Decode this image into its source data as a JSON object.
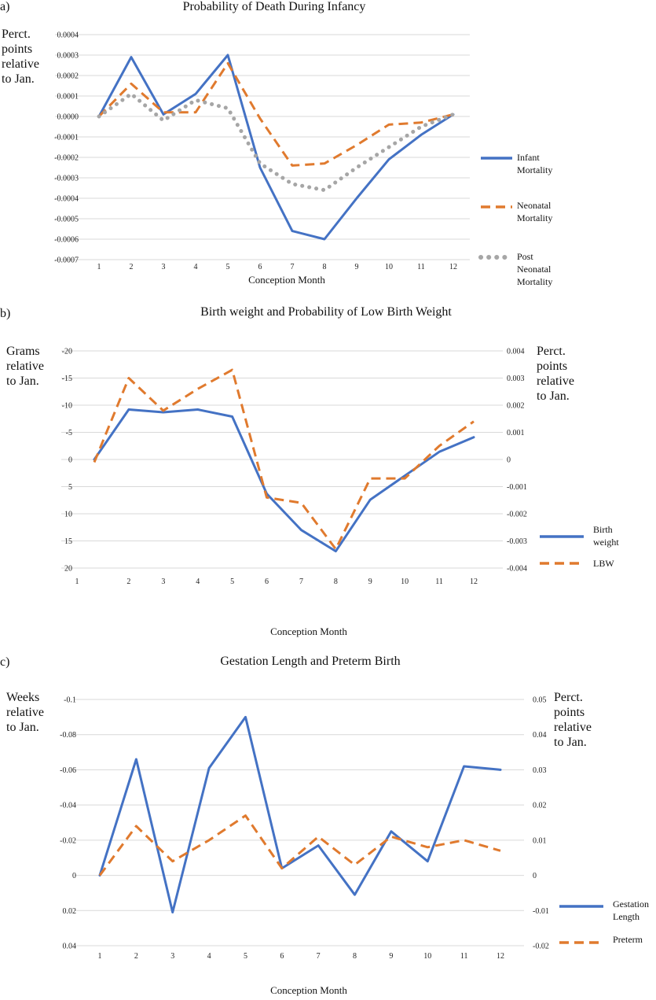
{
  "colors": {
    "blue": "#4472c4",
    "orange": "#e07a2e",
    "gray": "#a6a6a6",
    "grid": "#d9d9d9"
  },
  "chart_data": [
    {
      "type": "line",
      "panel": "a)",
      "title": "Probability of Death During Infancy",
      "ylabel": [
        "Perct.",
        "points",
        "relative",
        "to Jan."
      ],
      "xlabel": "Conception Month",
      "ylim": [
        -0.0007,
        0.0004
      ],
      "yticks": [
        "0.0004",
        "0.0003",
        "0.0002",
        "0.0001",
        "0.0000",
        "-0.0001",
        "-0.0002",
        "-0.0003",
        "-0.0004",
        "-0.0005",
        "-0.0006",
        "-0.0007"
      ],
      "categories": [
        "1",
        "2",
        "3",
        "4",
        "5",
        "6",
        "7",
        "8",
        "9",
        "10",
        "11",
        "12"
      ],
      "grid": true,
      "legend_position": "right",
      "series": [
        {
          "name": [
            "Infant",
            "Mortality"
          ],
          "style": "solid",
          "color": "blue",
          "values": [
            0.0,
            0.00029,
            1e-05,
            0.00011,
            0.0003,
            -0.00025,
            -0.00056,
            -0.0006,
            -0.0004,
            -0.00021,
            -9e-05,
            1e-05
          ]
        },
        {
          "name": [
            "Neonatal",
            "Mortality"
          ],
          "style": "dashed",
          "color": "orange",
          "values": [
            0.0,
            0.00016,
            2e-05,
            2e-05,
            0.00026,
            -1e-05,
            -0.00024,
            -0.00023,
            -0.00014,
            -4e-05,
            -3e-05,
            1e-05
          ]
        },
        {
          "name": [
            "Post",
            "Neonatal",
            "Mortality"
          ],
          "style": "dotted",
          "color": "gray",
          "values": [
            0.0,
            0.00011,
            -2e-05,
            8e-05,
            4e-05,
            -0.00023,
            -0.00033,
            -0.00036,
            -0.00025,
            -0.00015,
            -5e-05,
            1e-05
          ]
        }
      ]
    },
    {
      "type": "line",
      "panel": "b)",
      "title": "Birth weight and Probability of Low Birth Weight",
      "ylabel": [
        "Grams",
        "relative",
        "to Jan."
      ],
      "y2label": [
        "Perct.",
        "points",
        "relative",
        "to Jan."
      ],
      "xlabel": "Conception Month",
      "ylim": [
        20,
        -20
      ],
      "y2lim": [
        -0.004,
        0.004
      ],
      "yticks": [
        "-20",
        "-15",
        "-10",
        "-5",
        "0",
        "5",
        "10",
        "15",
        "20"
      ],
      "y2ticks": [
        "0.004",
        "0.003",
        "0.002",
        "0.001",
        "0",
        "-0.001",
        "-0.002",
        "-0.003",
        "-0.004"
      ],
      "categories": [
        "1",
        "2",
        "3",
        "4",
        "5",
        "6",
        "7",
        "8",
        "9",
        "10",
        "11",
        "12"
      ],
      "grid": true,
      "legend_position": "right",
      "series": [
        {
          "name": [
            "Birth",
            "weight"
          ],
          "style": "solid",
          "color": "blue",
          "axis": "left",
          "values": [
            0.0,
            -9.2,
            -8.7,
            -9.2,
            -7.9,
            6.3,
            13.0,
            16.9,
            7.4,
            3.0,
            -1.4,
            -4.1
          ]
        },
        {
          "name": [
            "LBW"
          ],
          "style": "dashed",
          "color": "orange",
          "axis": "right",
          "values": [
            -0.0001,
            0.003,
            0.0018,
            0.0026,
            0.0033,
            -0.0014,
            -0.0016,
            -0.0033,
            -0.0007,
            -0.0007,
            0.0005,
            0.0014
          ]
        }
      ]
    },
    {
      "type": "line",
      "panel": "c)",
      "title": "Gestation Length and Preterm Birth",
      "ylabel": [
        "Weeks",
        "relative",
        "to Jan."
      ],
      "y2label": [
        "Perct.",
        "points",
        "relative",
        "to Jan."
      ],
      "xlabel": "Conception Month",
      "ylim": [
        0.04,
        -0.1
      ],
      "y2lim": [
        -0.02,
        0.05
      ],
      "yticks": [
        "-0.1",
        "-0.08",
        "-0.06",
        "-0.04",
        "-0.02",
        "0",
        "0.02",
        "0.04"
      ],
      "y2ticks": [
        "0.05",
        "0.04",
        "0.03",
        "0.02",
        "0.01",
        "0",
        "-0.01",
        "-0.02"
      ],
      "categories": [
        "1",
        "2",
        "3",
        "4",
        "5",
        "6",
        "7",
        "8",
        "9",
        "10",
        "11",
        "12"
      ],
      "grid": true,
      "legend_position": "right",
      "series": [
        {
          "name": [
            "Gestation",
            "Length"
          ],
          "style": "solid",
          "color": "blue",
          "axis": "left",
          "values": [
            0.0,
            -0.066,
            0.021,
            -0.061,
            -0.09,
            -0.004,
            -0.017,
            0.011,
            -0.025,
            -0.008,
            -0.062,
            -0.06
          ]
        },
        {
          "name": [
            "Preterm"
          ],
          "style": "dashed",
          "color": "orange",
          "axis": "right",
          "values": [
            0.0,
            0.014,
            0.004,
            0.01,
            0.017,
            0.002,
            0.011,
            0.003,
            0.011,
            0.008,
            0.01,
            0.007
          ]
        }
      ]
    }
  ]
}
